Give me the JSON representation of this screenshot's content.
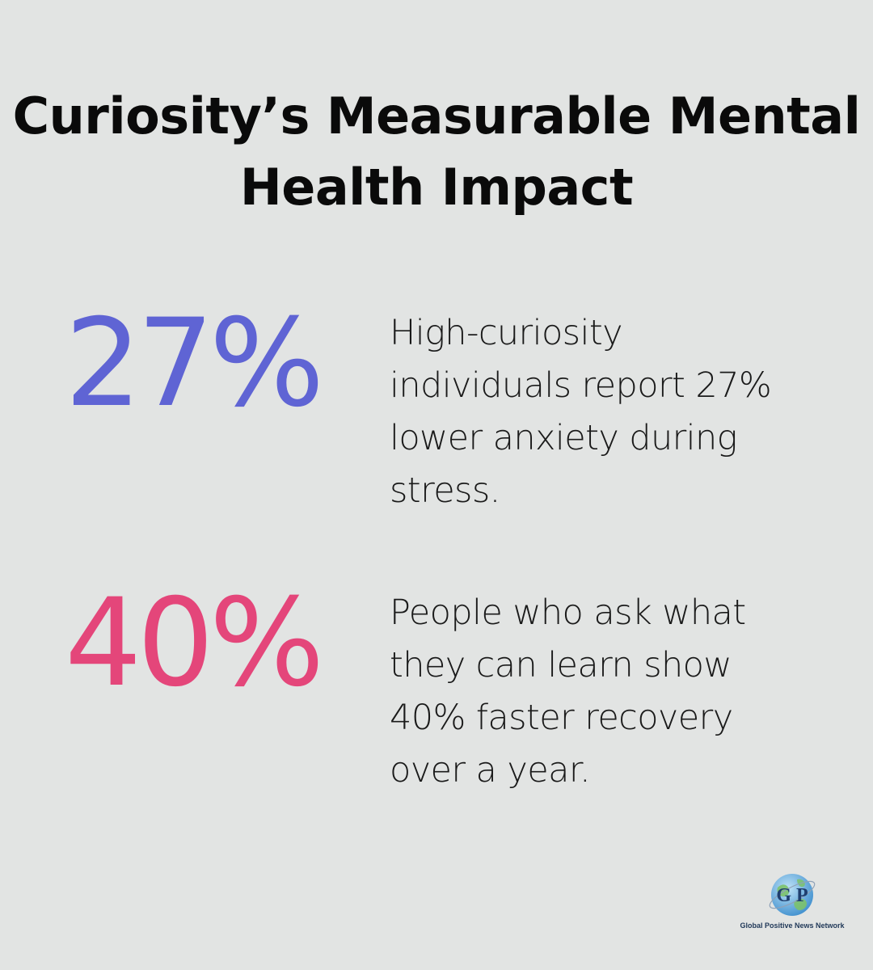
{
  "title": "Curiosity’s Measurable Mental Health Impact",
  "stats": [
    {
      "value": "27%",
      "color": "#5f64d4",
      "description": "High-curiosity individuals report 27% lower anxiety during stress."
    },
    {
      "value": "40%",
      "color": "#e4467a",
      "description": "People who ask what they can learn show 40% faster recovery over a year."
    }
  ],
  "logo": {
    "icon": "globe-icon",
    "letters": "G P",
    "caption": "Global Positive News Network",
    "colors": {
      "globe": "#4a9ad8",
      "land": "#7cc26a",
      "letters": "#1f3e6e"
    }
  }
}
